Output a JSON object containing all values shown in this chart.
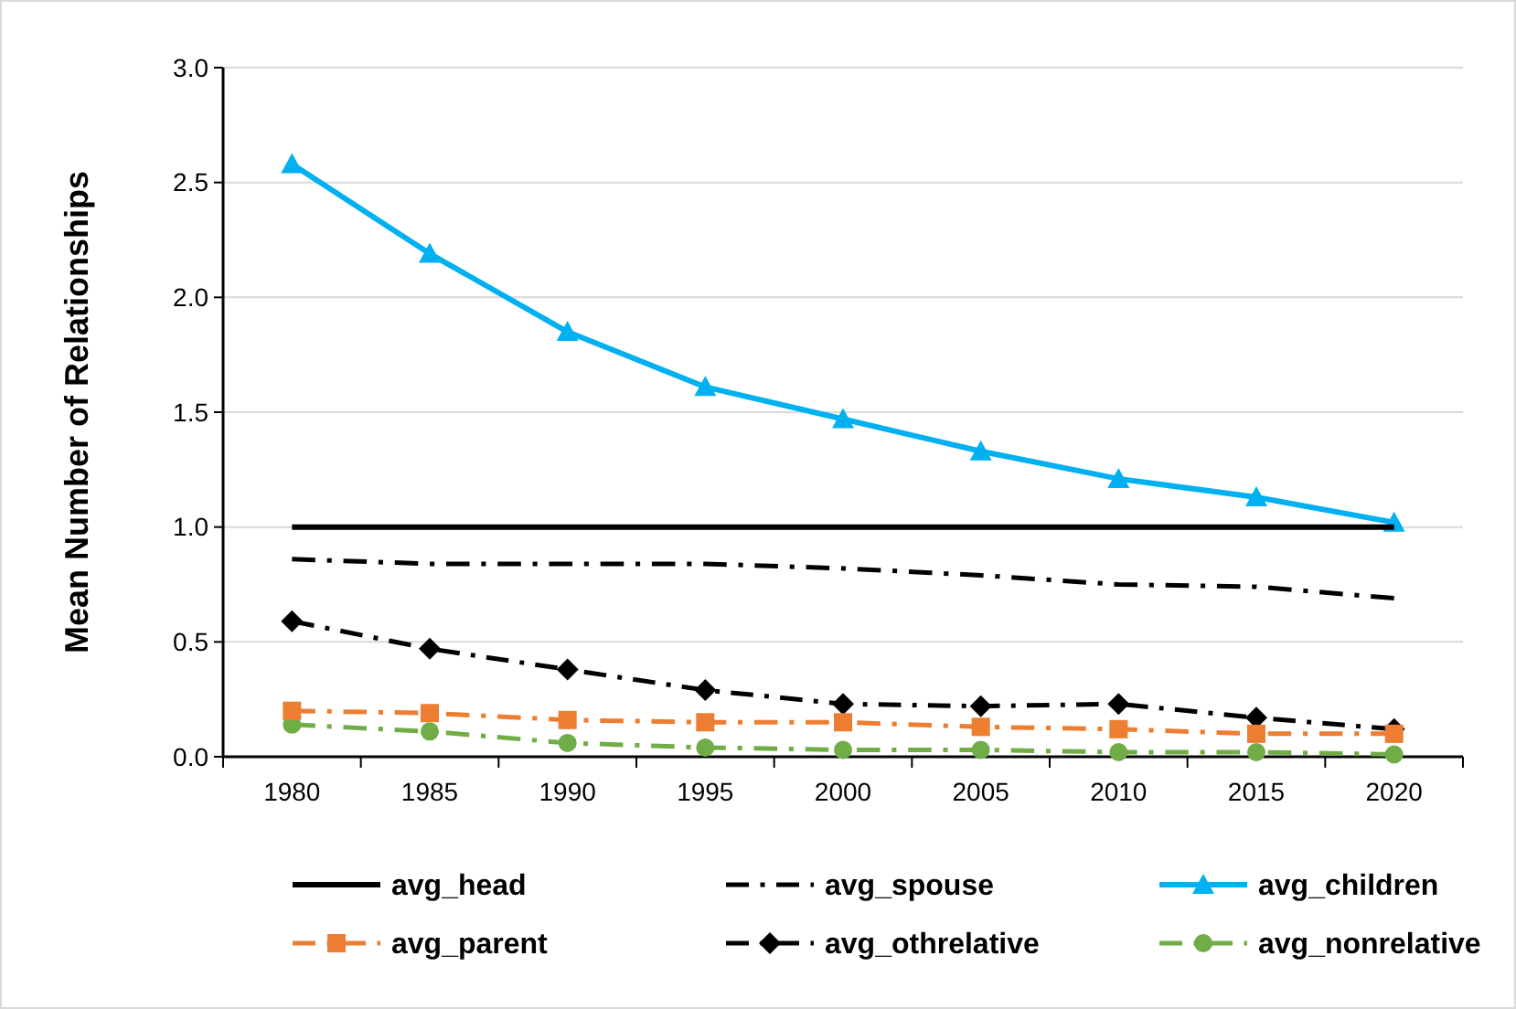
{
  "chart_data": {
    "type": "line",
    "ylabel": "Mean Number of Relationships",
    "categories": [
      "1980",
      "1985",
      "1990",
      "1995",
      "2000",
      "2005",
      "2010",
      "2015",
      "2020"
    ],
    "ylim": [
      0,
      3
    ],
    "yticks": [
      {
        "value": 0,
        "label": "0.0"
      },
      {
        "value": 0.5,
        "label": "0.5"
      },
      {
        "value": 1,
        "label": "1.0"
      },
      {
        "value": 1.5,
        "label": "1.5"
      },
      {
        "value": 2,
        "label": "2.0"
      },
      {
        "value": 2.5,
        "label": "2.5"
      },
      {
        "value": 3,
        "label": "3.0"
      }
    ],
    "grid": "y",
    "legend": "bottom",
    "series": [
      {
        "name": "avg_head",
        "color": "#000000",
        "marker": "none",
        "line_style": "solid",
        "values": [
          1,
          1,
          1,
          1,
          1,
          1,
          1,
          1,
          1
        ]
      },
      {
        "name": "avg_spouse",
        "color": "#000000",
        "marker": "none",
        "line_style": "dashdot",
        "values": [
          0.86,
          0.84,
          0.84,
          0.84,
          0.82,
          0.79,
          0.75,
          0.74,
          0.69
        ]
      },
      {
        "name": "avg_children",
        "color": "#00b0f0",
        "marker": "triangle",
        "line_style": "solid",
        "values": [
          2.58,
          2.19,
          1.85,
          1.61,
          1.47,
          1.33,
          1.21,
          1.13,
          1.02
        ]
      },
      {
        "name": "avg_parent",
        "color": "#ed7d31",
        "marker": "square",
        "line_style": "dashdot",
        "values": [
          0.2,
          0.19,
          0.16,
          0.15,
          0.15,
          0.13,
          0.12,
          0.1,
          0.1
        ]
      },
      {
        "name": "avg_othrelative",
        "color": "#000000",
        "marker": "diamond",
        "line_style": "dashdot",
        "values": [
          0.59,
          0.47,
          0.38,
          0.29,
          0.23,
          0.22,
          0.23,
          0.17,
          0.12
        ]
      },
      {
        "name": "avg_nonrelative",
        "color": "#70ad47",
        "marker": "circle",
        "line_style": "dashdot",
        "values": [
          0.14,
          0.11,
          0.06,
          0.04,
          0.03,
          0.03,
          0.02,
          0.02,
          0.01
        ]
      }
    ]
  }
}
